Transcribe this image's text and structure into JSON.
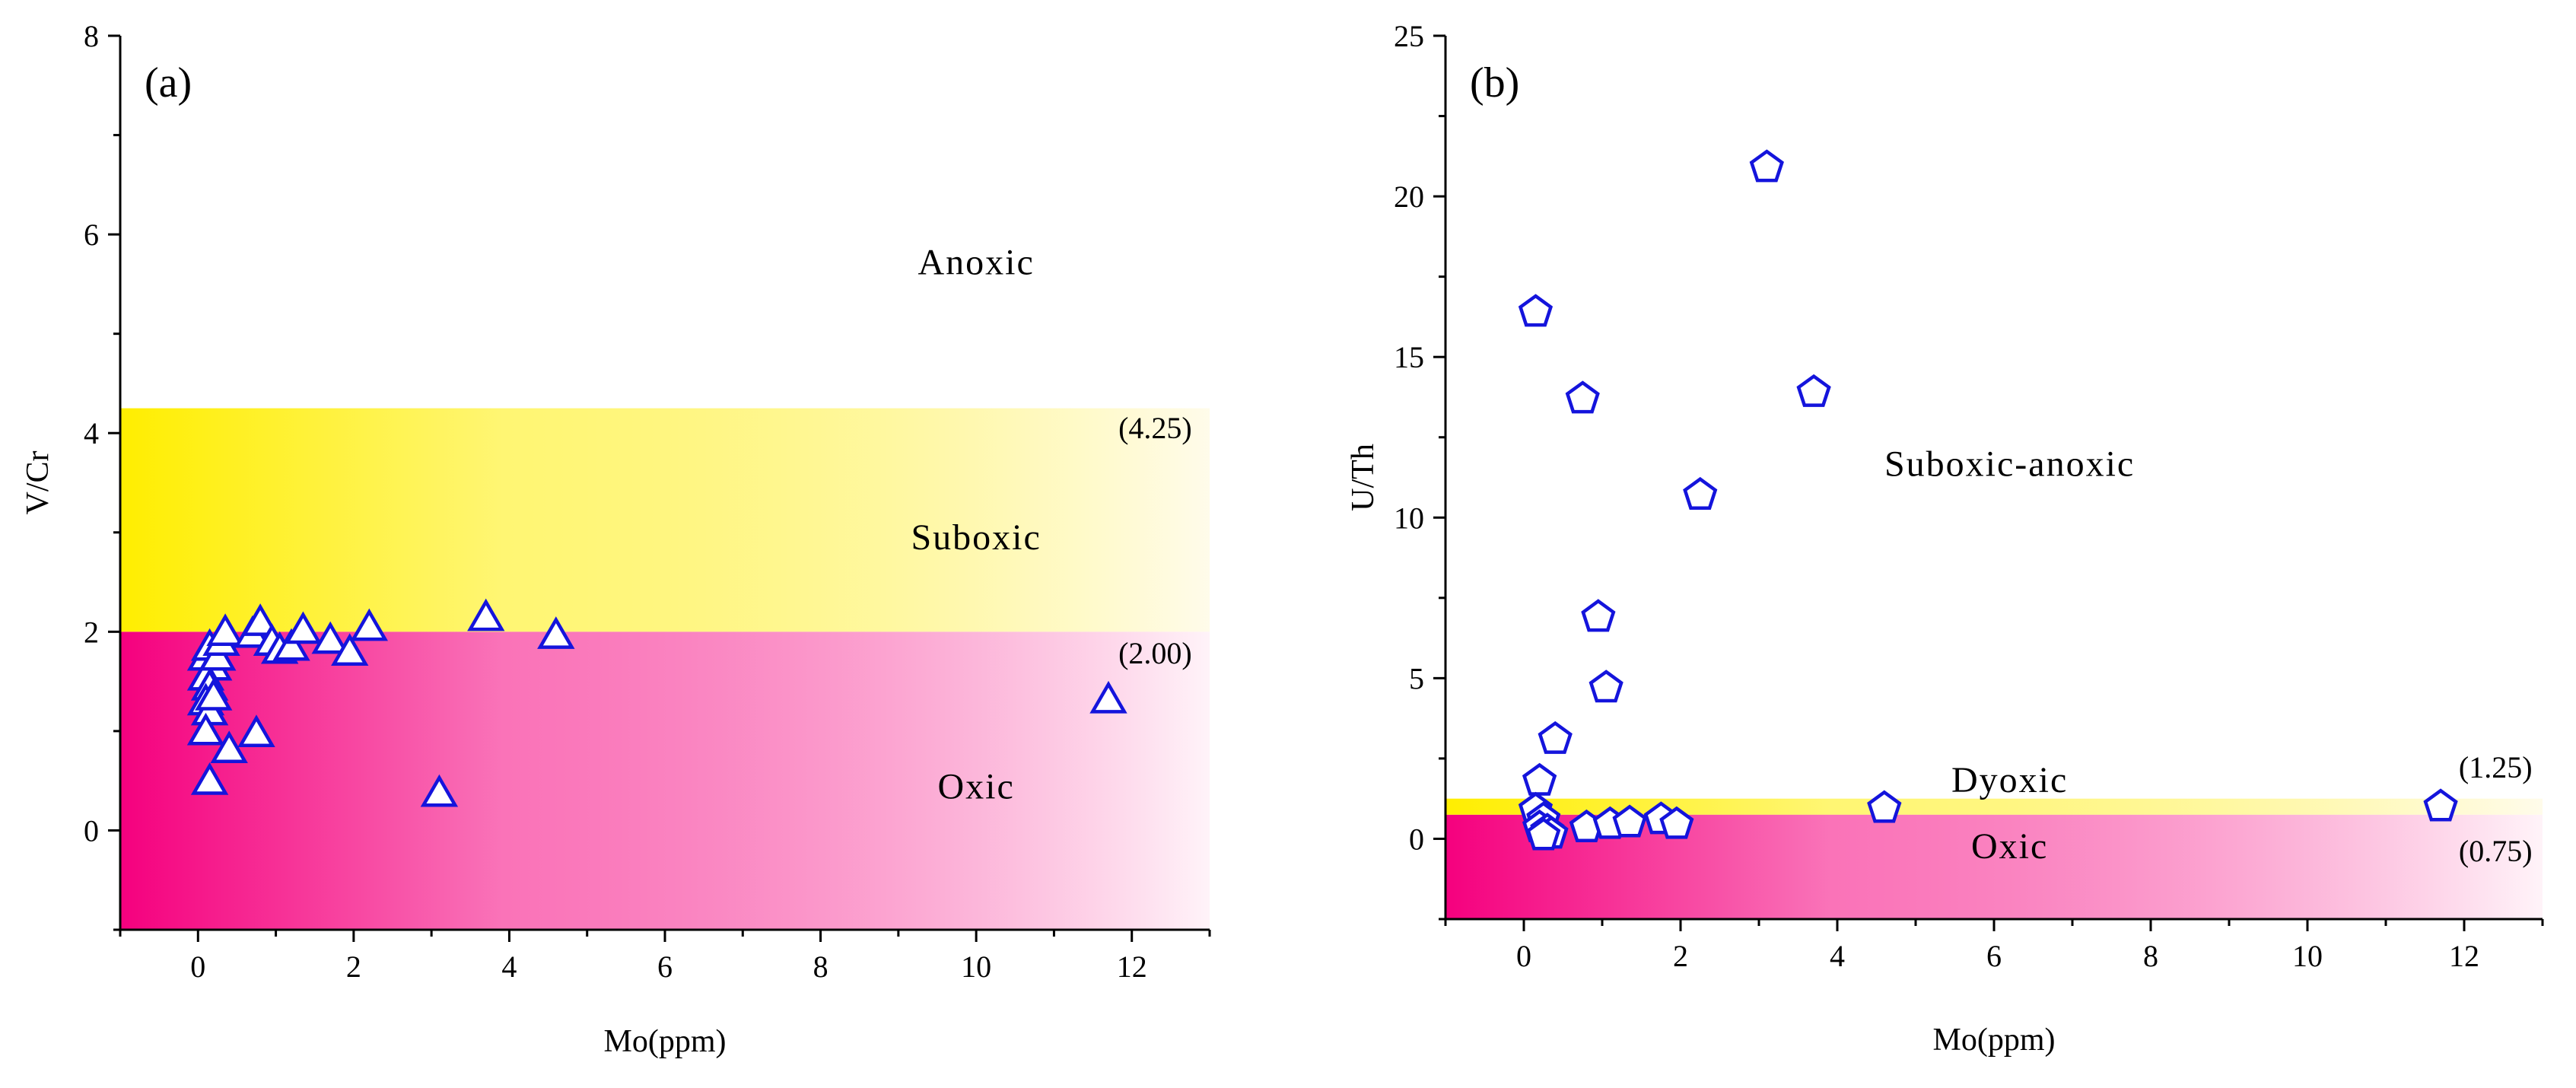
{
  "colors": {
    "marker_stroke": "#1414dc",
    "marker_fill": "#ffffff",
    "oxic_strong": "#f5007e",
    "oxic_faint": "#fff2f8",
    "suboxic_strong": "#ffee00",
    "suboxic_faint": "#fffbe8",
    "axis": "#000000"
  },
  "chart_data": [
    {
      "type": "scatter",
      "panel": "(a)",
      "marker": "triangle",
      "xlabel": "Mo(ppm)",
      "ylabel": "V/Cr",
      "xlim": [
        -1,
        13
      ],
      "ylim": [
        -1,
        8
      ],
      "x_ticks": [
        0,
        2,
        4,
        6,
        8,
        10,
        12
      ],
      "y_ticks": [
        0,
        2,
        4,
        6,
        8
      ],
      "regions": [
        {
          "name": "Oxic",
          "y0": -1,
          "y1": 2.0,
          "style": "oxic",
          "label_pos": [
            10,
            0.32
          ]
        },
        {
          "name": "Suboxic",
          "y0": 2.0,
          "y1": 4.25,
          "style": "suboxic",
          "label_pos": [
            10,
            2.83
          ]
        },
        {
          "name": "Anoxic",
          "y0": 4.25,
          "y1": 8,
          "style": "none",
          "label_pos": [
            10,
            5.6
          ]
        }
      ],
      "thresholds": [
        {
          "label": "(4.25)",
          "value": 4.25,
          "label_pos": [
            12.3,
            3.95
          ]
        },
        {
          "label": "(2.00)",
          "value": 2.0,
          "label_pos": [
            12.3,
            1.68
          ]
        }
      ],
      "points": [
        {
          "x": 0.1,
          "y": 1.75
        },
        {
          "x": 0.15,
          "y": 1.85
        },
        {
          "x": 0.2,
          "y": 1.65
        },
        {
          "x": 0.1,
          "y": 1.55
        },
        {
          "x": 0.15,
          "y": 1.45
        },
        {
          "x": 0.1,
          "y": 1.3
        },
        {
          "x": 0.15,
          "y": 1.2
        },
        {
          "x": 0.1,
          "y": 1.0
        },
        {
          "x": 0.2,
          "y": 1.35
        },
        {
          "x": 0.25,
          "y": 1.75
        },
        {
          "x": 0.3,
          "y": 1.9
        },
        {
          "x": 0.35,
          "y": 2.0
        },
        {
          "x": 0.15,
          "y": 0.5
        },
        {
          "x": 0.4,
          "y": 0.82
        },
        {
          "x": 0.75,
          "y": 0.98
        },
        {
          "x": 0.7,
          "y": 1.98
        },
        {
          "x": 0.8,
          "y": 2.1
        },
        {
          "x": 0.95,
          "y": 1.9
        },
        {
          "x": 1.05,
          "y": 1.82
        },
        {
          "x": 1.2,
          "y": 1.85
        },
        {
          "x": 1.35,
          "y": 2.02
        },
        {
          "x": 1.7,
          "y": 1.92
        },
        {
          "x": 1.95,
          "y": 1.8
        },
        {
          "x": 2.2,
          "y": 2.05
        },
        {
          "x": 3.7,
          "y": 2.15
        },
        {
          "x": 4.6,
          "y": 1.97
        },
        {
          "x": 3.1,
          "y": 0.38
        },
        {
          "x": 11.7,
          "y": 1.32
        }
      ]
    },
    {
      "type": "scatter",
      "panel": "(b)",
      "marker": "pentagon",
      "xlabel": "Mo(ppm)",
      "ylabel": "U/Th",
      "xlim": [
        -1,
        13
      ],
      "ylim": [
        -2.5,
        25
      ],
      "x_ticks": [
        0,
        2,
        4,
        6,
        8,
        10,
        12
      ],
      "y_ticks": [
        0,
        5,
        10,
        15,
        20,
        25
      ],
      "regions": [
        {
          "name": "Oxic",
          "y0": -2.5,
          "y1": 0.75,
          "style": "oxic",
          "label_pos": [
            6.2,
            -0.6
          ]
        },
        {
          "name": "Dyoxic",
          "y0": 0.75,
          "y1": 1.25,
          "style": "suboxic",
          "label_pos": [
            6.2,
            1.45
          ]
        },
        {
          "name": "Suboxic-anoxic",
          "y0": 1.25,
          "y1": 25,
          "style": "none",
          "label_pos": [
            6.2,
            11.3
          ]
        }
      ],
      "thresholds": [
        {
          "label": "(1.25)",
          "value": 1.25,
          "label_pos": [
            12.4,
            1.9
          ]
        },
        {
          "label": "(0.75)",
          "value": 0.75,
          "label_pos": [
            12.4,
            -0.7
          ]
        }
      ],
      "points": [
        {
          "x": 3.1,
          "y": 20.9
        },
        {
          "x": 0.15,
          "y": 16.4
        },
        {
          "x": 0.75,
          "y": 13.7
        },
        {
          "x": 3.7,
          "y": 13.9
        },
        {
          "x": 2.25,
          "y": 10.7
        },
        {
          "x": 0.95,
          "y": 6.9
        },
        {
          "x": 1.05,
          "y": 4.7
        },
        {
          "x": 0.4,
          "y": 3.1
        },
        {
          "x": 0.2,
          "y": 1.8
        },
        {
          "x": 0.15,
          "y": 0.9
        },
        {
          "x": 0.25,
          "y": 0.6
        },
        {
          "x": 0.2,
          "y": 0.35
        },
        {
          "x": 0.3,
          "y": 0.25
        },
        {
          "x": 0.35,
          "y": 0.15
        },
        {
          "x": 0.25,
          "y": 0.1
        },
        {
          "x": 0.8,
          "y": 0.35
        },
        {
          "x": 1.1,
          "y": 0.45
        },
        {
          "x": 1.35,
          "y": 0.5
        },
        {
          "x": 1.75,
          "y": 0.6
        },
        {
          "x": 1.95,
          "y": 0.45
        },
        {
          "x": 4.6,
          "y": 0.95
        },
        {
          "x": 11.7,
          "y": 1.0
        }
      ]
    }
  ]
}
